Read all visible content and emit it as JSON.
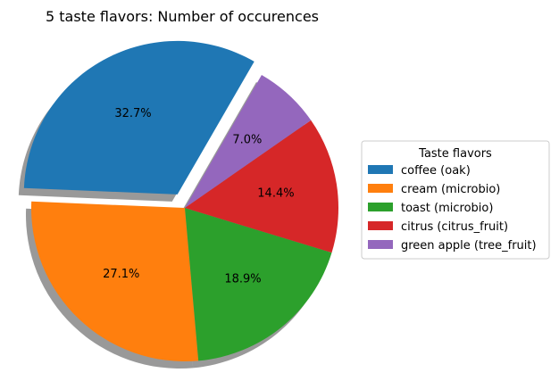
{
  "chart_data": {
    "type": "pie",
    "title": "5 taste flavors: Number of occurences",
    "legend_title": "Taste flavors",
    "legend_placement": "right",
    "start_angle_deg": 60,
    "direction": "counterclockwise",
    "shadow": true,
    "slices": [
      {
        "label": "coffee (oak)",
        "percent": 32.7,
        "pct_label": "32.7%",
        "color": "#1f77b4",
        "explode": true
      },
      {
        "label": "cream (microbio)",
        "percent": 27.1,
        "pct_label": "27.1%",
        "color": "#ff7f0e",
        "explode": false
      },
      {
        "label": "toast (microbio)",
        "percent": 18.9,
        "pct_label": "18.9%",
        "color": "#2ca02c",
        "explode": false
      },
      {
        "label": "citrus (citrus_fruit)",
        "percent": 14.4,
        "pct_label": "14.4%",
        "color": "#d62728",
        "explode": false
      },
      {
        "label": "green apple (tree_fruit)",
        "percent": 7.0,
        "pct_label": "7.0%",
        "color": "#9467bd",
        "explode": false
      }
    ]
  }
}
